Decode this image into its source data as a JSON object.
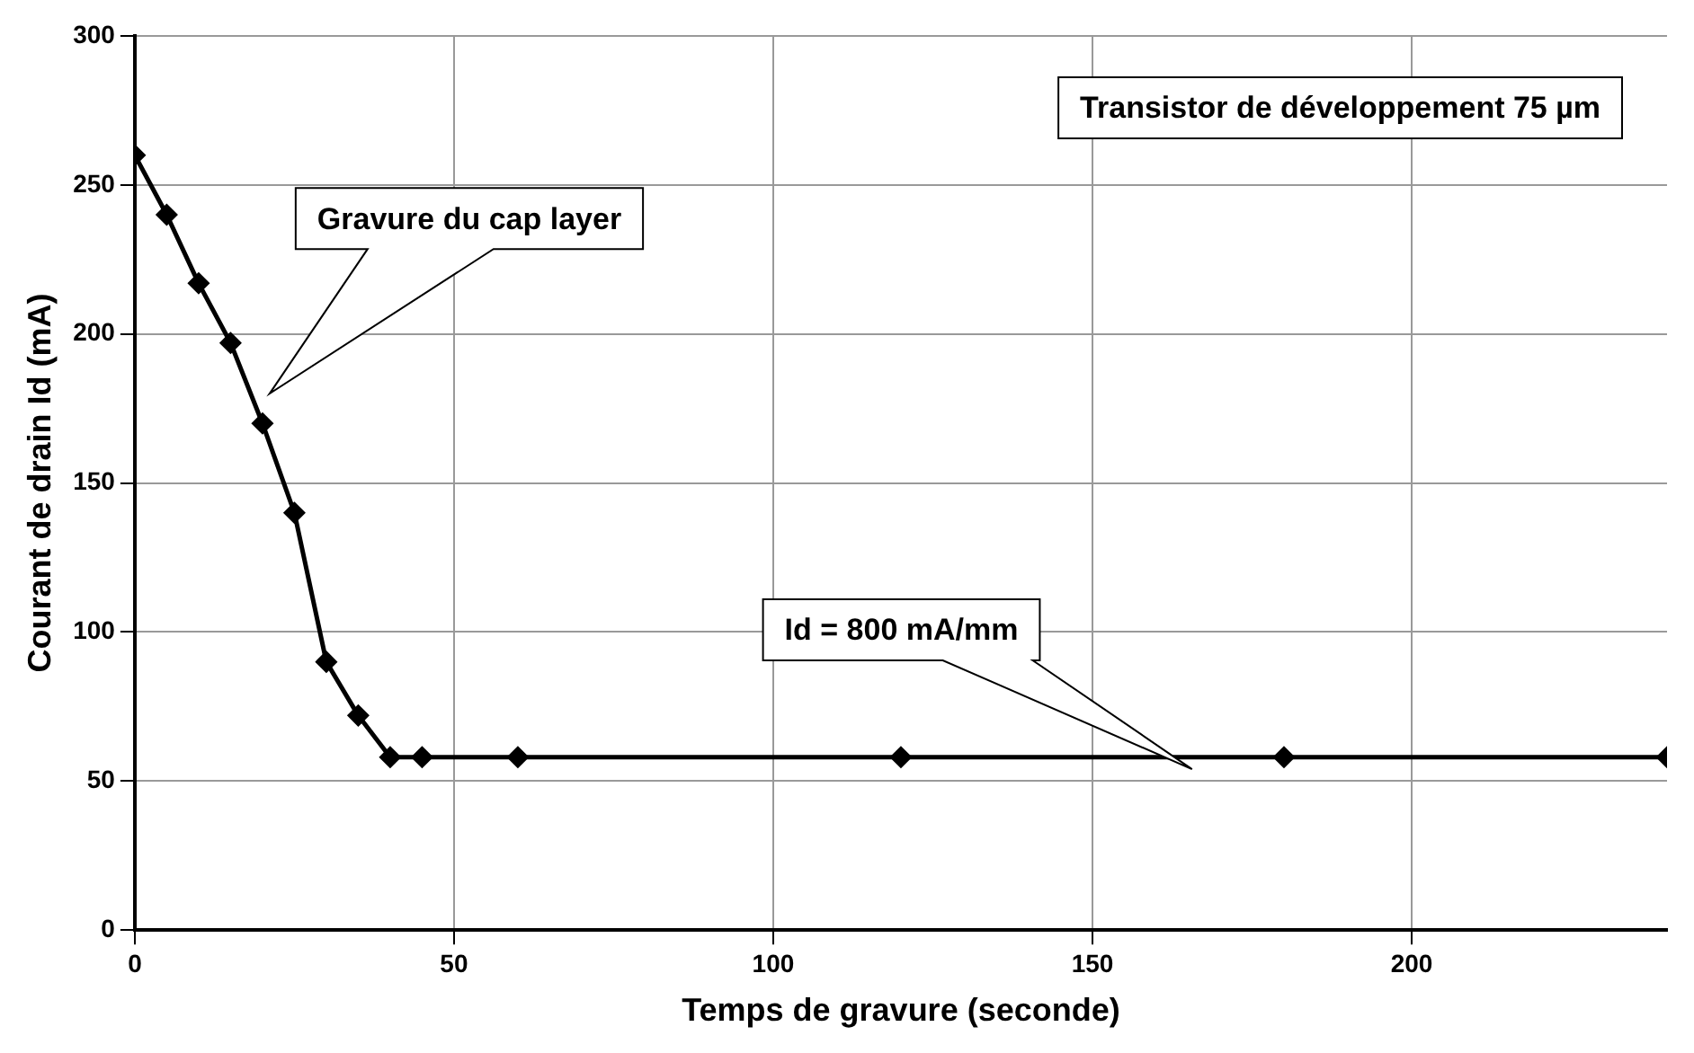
{
  "chart_data": {
    "type": "line",
    "xlabel": "Temps de gravure (seconde)",
    "ylabel": "Courant de drain Id (mA)",
    "x": [
      0,
      5,
      10,
      15,
      20,
      25,
      30,
      35,
      40,
      45,
      60,
      120,
      180,
      240
    ],
    "series": [
      {
        "color": "#000000",
        "values": [
          260,
          240,
          217,
          197,
          170,
          140,
          90,
          72,
          58,
          58,
          58,
          58,
          58,
          58
        ]
      }
    ],
    "xlim": [
      0,
      240
    ],
    "xticks": [
      0,
      50,
      100,
      150,
      200
    ],
    "ylim": [
      0,
      300
    ],
    "yticks": [
      0,
      50,
      100,
      150,
      200,
      250,
      300
    ],
    "grid": true,
    "legend": false,
    "marker": "diamond",
    "line_style": "solid",
    "annotations": [
      "Transistor de développement 75 µm",
      "Gravure du cap layer",
      "Id = 800 mA/mm"
    ]
  }
}
